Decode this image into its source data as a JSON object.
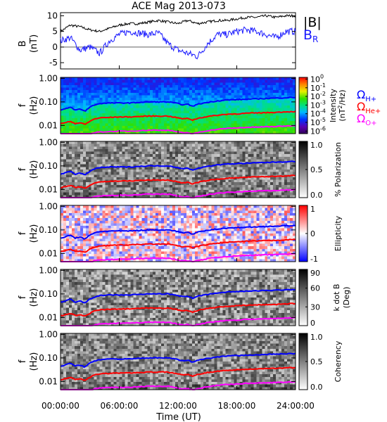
{
  "title": "ACE Mag 2013-073",
  "time_axis": {
    "label": "Time (UT)",
    "range_hours": [
      0,
      24
    ],
    "ticks": [
      0,
      6,
      12,
      18,
      24
    ],
    "tick_labels": [
      "00:00:00",
      "06:00:00",
      "12:00:00",
      "18:00:00",
      "24:00:00"
    ]
  },
  "colors": {
    "B": "#000000",
    "BR": "#1a1aff",
    "H": "#0000ff",
    "He": "#ff0000",
    "O": "#ff00ff"
  },
  "chart_data": [
    {
      "type": "line",
      "panel": "field",
      "ylabel_line1": "B",
      "ylabel_line2": "(nT)",
      "ylim": [
        -7,
        11
      ],
      "yticks": [
        -5,
        0,
        5,
        10
      ],
      "series": [
        {
          "name": "|B|",
          "color": "#000000",
          "x": [
            0,
            1,
            2,
            3,
            4,
            5,
            6,
            7,
            8,
            9,
            10,
            11,
            12,
            13,
            14,
            15,
            16,
            17,
            18,
            19,
            20,
            21,
            22,
            23,
            24
          ],
          "values": [
            5,
            7,
            6.5,
            5.5,
            5,
            6,
            7,
            7.5,
            7.5,
            8,
            8.5,
            8,
            7.5,
            8.5,
            7.5,
            8,
            8.5,
            8.5,
            9,
            9.5,
            9.5,
            10,
            9.5,
            10,
            10
          ]
        },
        {
          "name": "B",
          "subscript": "R",
          "color": "#1a1aff",
          "x": [
            0,
            1,
            2,
            3,
            4,
            5,
            6,
            7,
            8,
            9,
            10,
            11,
            12,
            13,
            14,
            15,
            16,
            17,
            18,
            19,
            20,
            21,
            22,
            23,
            24
          ],
          "values": [
            2,
            3,
            -1,
            0,
            -2,
            2,
            4,
            5,
            4.5,
            4,
            4.5,
            1,
            -1,
            -2,
            -3,
            1,
            4,
            4,
            5,
            5.5,
            5,
            4,
            3,
            5,
            5
          ]
        }
      ]
    },
    {
      "type": "heatmap",
      "panel": "intensity",
      "ylabel_line1": "f",
      "ylabel_line2": "(Hz)",
      "ylim": [
        0.0045,
        1.1
      ],
      "ylog": true,
      "yticks": [
        0.01,
        0.1,
        1
      ],
      "ytick_labels": [
        "0.01",
        "0.10",
        "1.00"
      ],
      "colorbar": {
        "label_line1": "Intensity",
        "label_line2": "(nT",
        "label_sup": "2",
        "label_end": "/Hz)",
        "ticks": [
          0,
          -1,
          -2,
          -3,
          -4,
          -5,
          -6
        ],
        "log_range": [
          -6.3,
          0.2
        ]
      }
    },
    {
      "type": "heatmap",
      "panel": "polarization",
      "ylabel_line1": "f",
      "ylabel_line2": "(Hz)",
      "colorbar": {
        "label": "% Polarization",
        "ticks": [
          "0.0",
          "0.5",
          "1.0"
        ]
      }
    },
    {
      "type": "heatmap",
      "panel": "ellipticity",
      "ylabel_line1": "f",
      "ylabel_line2": "(Hz)",
      "colorbar": {
        "label": "Ellipticity",
        "ticks": [
          "-1",
          "0",
          "1"
        ]
      }
    },
    {
      "type": "heatmap",
      "panel": "kdotb",
      "ylabel_line1": "f",
      "ylabel_line2": "(Hz)",
      "colorbar": {
        "label_line1": "k dot B",
        "label_line2": "(Deg)",
        "ticks": [
          "0",
          "30",
          "60",
          "90"
        ]
      }
    },
    {
      "type": "heatmap",
      "panel": "coherency",
      "ylabel_line1": "f",
      "ylabel_line2": "(Hz)",
      "colorbar": {
        "label": "Coherency",
        "ticks": [
          "0.0",
          "0.5",
          "1.0"
        ]
      }
    }
  ],
  "gyro_lines": {
    "x": [
      0,
      0.5,
      1,
      1.5,
      2,
      2.5,
      3,
      3.5,
      4,
      5,
      6,
      7,
      8,
      9,
      10,
      11,
      12,
      12.5,
      13,
      13.5,
      14,
      15,
      16,
      17,
      18,
      19,
      20,
      21,
      22,
      23,
      24
    ],
    "H": [
      0.045,
      0.05,
      0.06,
      0.045,
      0.05,
      0.04,
      0.06,
      0.075,
      0.085,
      0.09,
      0.09,
      0.09,
      0.095,
      0.1,
      0.1,
      0.1,
      0.085,
      0.075,
      0.08,
      0.065,
      0.08,
      0.095,
      0.11,
      0.12,
      0.125,
      0.13,
      0.135,
      0.14,
      0.145,
      0.15,
      0.155
    ],
    "He": [
      0.012,
      0.013,
      0.015,
      0.012,
      0.013,
      0.011,
      0.015,
      0.019,
      0.021,
      0.022,
      0.023,
      0.023,
      0.024,
      0.025,
      0.025,
      0.025,
      0.021,
      0.019,
      0.02,
      0.017,
      0.02,
      0.024,
      0.027,
      0.03,
      0.031,
      0.033,
      0.034,
      0.035,
      0.036,
      0.038,
      0.039
    ],
    "O": [
      0.0035,
      0.0037,
      0.004,
      0.0035,
      0.0036,
      0.0033,
      0.004,
      0.005,
      0.0053,
      0.0055,
      0.0057,
      0.0057,
      0.006,
      0.0063,
      0.0063,
      0.0063,
      0.0053,
      0.0048,
      0.005,
      0.0043,
      0.005,
      0.006,
      0.0068,
      0.0075,
      0.0078,
      0.0083,
      0.0085,
      0.0088,
      0.009,
      0.0095,
      0.0098
    ]
  },
  "gyro_legend": [
    {
      "symbol": "Ω",
      "sub": "H+",
      "key": "H"
    },
    {
      "symbol": "Ω",
      "sub": "He+",
      "key": "He"
    },
    {
      "symbol": "Ω",
      "sub": "O+",
      "key": "O"
    }
  ]
}
